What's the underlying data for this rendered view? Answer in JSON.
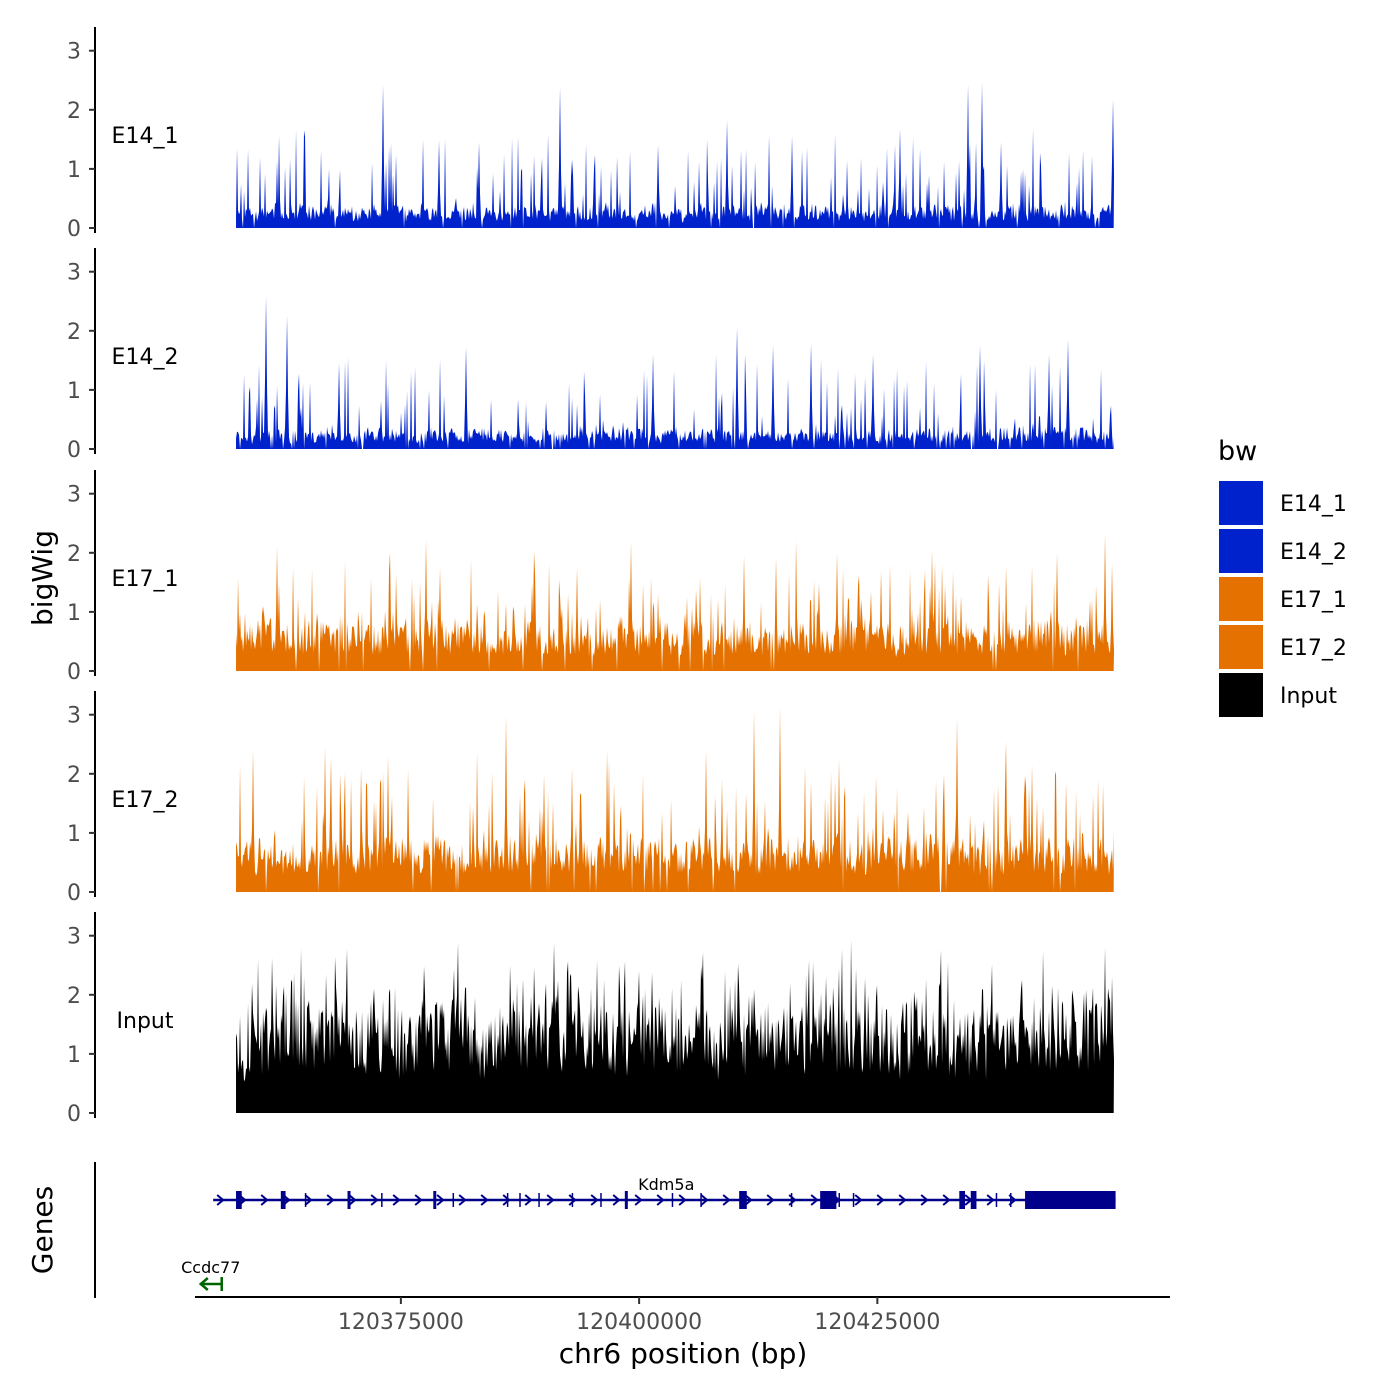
{
  "chart_data": {
    "type": "area",
    "xlabel": "chr6 position (bp)",
    "ylabel": "bigWig",
    "genes_label": "Genes",
    "xlim": [
      120353500,
      120455500
    ],
    "ylim": [
      0,
      3.3
    ],
    "y_ticks": [
      0,
      1,
      2,
      3
    ],
    "x_ticks": [
      120375000,
      120400000,
      120425000
    ],
    "x_tick_labels": [
      "120375000",
      "120400000",
      "120425000"
    ],
    "legend": {
      "title": "bw",
      "entries": [
        {
          "name": "E14_1",
          "color": "#0022cc"
        },
        {
          "name": "E14_2",
          "color": "#0022cc"
        },
        {
          "name": "E17_1",
          "color": "#e57200"
        },
        {
          "name": "E17_2",
          "color": "#e57200"
        },
        {
          "name": "Input",
          "color": "#000000"
        }
      ]
    },
    "series": [
      {
        "name": "E14_1",
        "color": "#0022cc",
        "range": [
          120357700,
          120449800
        ],
        "seed": 11,
        "base": 0.25,
        "spike_prob": 0.14,
        "spike_max": 1.4,
        "gap_prob": 0.05,
        "peaks": [
          [
            120373100,
            2.42
          ],
          [
            120391700,
            2.38
          ],
          [
            120409200,
            1.82
          ],
          [
            120427400,
            1.68
          ],
          [
            120434500,
            2.42
          ],
          [
            120436000,
            2.45
          ],
          [
            120438000,
            1.45
          ],
          [
            120449700,
            2.18
          ],
          [
            120383200,
            1.45
          ],
          [
            120379000,
            1.48
          ],
          [
            120402000,
            1.4
          ],
          [
            120416000,
            1.55
          ]
        ]
      },
      {
        "name": "E14_2",
        "color": "#0022cc",
        "range": [
          120357700,
          120449800
        ],
        "seed": 23,
        "base": 0.22,
        "spike_prob": 0.15,
        "spike_max": 1.3,
        "gap_prob": 0.06,
        "peaks": [
          [
            120360900,
            2.58
          ],
          [
            120363000,
            2.25
          ],
          [
            120368500,
            1.45
          ],
          [
            120381800,
            1.72
          ],
          [
            120401500,
            1.6
          ],
          [
            120410300,
            2.05
          ],
          [
            120418000,
            1.78
          ],
          [
            120424500,
            1.6
          ],
          [
            120435800,
            1.75
          ],
          [
            120445000,
            1.85
          ],
          [
            120443000,
            1.6
          ],
          [
            120414000,
            1.75
          ]
        ]
      },
      {
        "name": "E17_1",
        "color": "#e57200",
        "range": [
          120357700,
          120449800
        ],
        "seed": 37,
        "base": 0.55,
        "spike_prob": 0.16,
        "spike_max": 1.3,
        "gap_prob": 0.03,
        "peaks": [
          [
            120362000,
            2.1
          ],
          [
            120377600,
            2.22
          ],
          [
            120379100,
            1.75
          ],
          [
            120389000,
            2.02
          ],
          [
            120399100,
            2.18
          ],
          [
            120414400,
            1.92
          ],
          [
            120420800,
            2.0
          ],
          [
            120430700,
            2.05
          ],
          [
            120443900,
            2.0
          ],
          [
            120448900,
            2.32
          ],
          [
            120393500,
            1.75
          ],
          [
            120411000,
            1.95
          ]
        ]
      },
      {
        "name": "E17_2",
        "color": "#e57200",
        "range": [
          120357700,
          120449800
        ],
        "seed": 41,
        "base": 0.6,
        "spike_prob": 0.17,
        "spike_max": 1.5,
        "gap_prob": 0.03,
        "peaks": [
          [
            120359500,
            2.4
          ],
          [
            120367000,
            2.45
          ],
          [
            120386000,
            2.98
          ],
          [
            120412100,
            3.05
          ],
          [
            120414800,
            3.12
          ],
          [
            120433400,
            2.95
          ],
          [
            120438500,
            2.55
          ],
          [
            120441200,
            2.15
          ],
          [
            120390000,
            2.0
          ],
          [
            120393000,
            2.1
          ],
          [
            120407000,
            2.4
          ],
          [
            120421000,
            2.25
          ]
        ]
      },
      {
        "name": "Input",
        "color": "#000000",
        "range": [
          120357700,
          120449800
        ],
        "seed": 53,
        "base": 1.3,
        "spike_prob": 0.22,
        "spike_max": 1.0,
        "gap_prob": 0.0,
        "peaks": [
          [
            120364500,
            2.78
          ],
          [
            120369300,
            2.78
          ],
          [
            120381000,
            2.88
          ],
          [
            120391100,
            2.88
          ],
          [
            120400000,
            2.4
          ],
          [
            120409000,
            2.4
          ],
          [
            120418300,
            2.55
          ],
          [
            120424000,
            2.0
          ],
          [
            120431500,
            2.2
          ],
          [
            120436000,
            2.1
          ],
          [
            120386500,
            2.5
          ],
          [
            120360000,
            2.6
          ]
        ]
      }
    ],
    "genes": [
      {
        "name": "Kdm5a",
        "strand": "+",
        "start": 120355300,
        "end": 120450000,
        "color": "#00008b",
        "row": 1,
        "exons": [
          [
            120357700,
            120358300
          ],
          [
            120362400,
            120362900
          ],
          [
            120369400,
            120369700
          ],
          [
            120378400,
            120378700
          ],
          [
            120398500,
            120398800
          ],
          [
            120410500,
            120411300
          ],
          [
            120419000,
            120420700
          ],
          [
            120433600,
            120434200
          ],
          [
            120434800,
            120435400
          ],
          [
            120440500,
            120450000
          ]
        ]
      },
      {
        "name": "Ccdc77",
        "strand": "-",
        "start": 120353900,
        "end": 120356200,
        "color": "#006400",
        "row": 2,
        "exons": []
      }
    ]
  }
}
